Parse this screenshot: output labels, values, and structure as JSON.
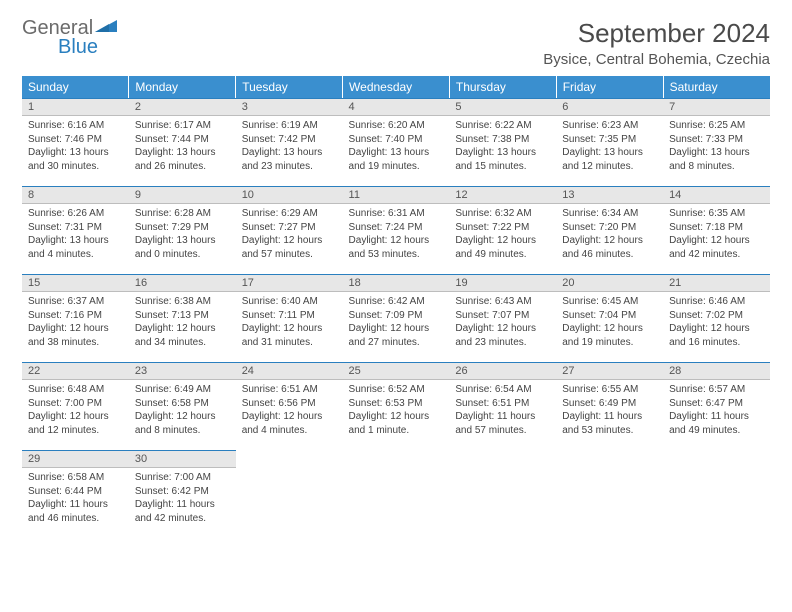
{
  "logo": {
    "general": "General",
    "blue": "Blue"
  },
  "title": "September 2024",
  "location": "Bysice, Central Bohemia, Czechia",
  "header_bg": "#3a8fcf",
  "day_header_bg": "#e7e7e7",
  "day_header_border": "#2a7fbf",
  "weekdays": [
    "Sunday",
    "Monday",
    "Tuesday",
    "Wednesday",
    "Thursday",
    "Friday",
    "Saturday"
  ],
  "days": [
    {
      "n": "1",
      "sr": "Sunrise: 6:16 AM",
      "ss": "Sunset: 7:46 PM",
      "dl": "Daylight: 13 hours and 30 minutes."
    },
    {
      "n": "2",
      "sr": "Sunrise: 6:17 AM",
      "ss": "Sunset: 7:44 PM",
      "dl": "Daylight: 13 hours and 26 minutes."
    },
    {
      "n": "3",
      "sr": "Sunrise: 6:19 AM",
      "ss": "Sunset: 7:42 PM",
      "dl": "Daylight: 13 hours and 23 minutes."
    },
    {
      "n": "4",
      "sr": "Sunrise: 6:20 AM",
      "ss": "Sunset: 7:40 PM",
      "dl": "Daylight: 13 hours and 19 minutes."
    },
    {
      "n": "5",
      "sr": "Sunrise: 6:22 AM",
      "ss": "Sunset: 7:38 PM",
      "dl": "Daylight: 13 hours and 15 minutes."
    },
    {
      "n": "6",
      "sr": "Sunrise: 6:23 AM",
      "ss": "Sunset: 7:35 PM",
      "dl": "Daylight: 13 hours and 12 minutes."
    },
    {
      "n": "7",
      "sr": "Sunrise: 6:25 AM",
      "ss": "Sunset: 7:33 PM",
      "dl": "Daylight: 13 hours and 8 minutes."
    },
    {
      "n": "8",
      "sr": "Sunrise: 6:26 AM",
      "ss": "Sunset: 7:31 PM",
      "dl": "Daylight: 13 hours and 4 minutes."
    },
    {
      "n": "9",
      "sr": "Sunrise: 6:28 AM",
      "ss": "Sunset: 7:29 PM",
      "dl": "Daylight: 13 hours and 0 minutes."
    },
    {
      "n": "10",
      "sr": "Sunrise: 6:29 AM",
      "ss": "Sunset: 7:27 PM",
      "dl": "Daylight: 12 hours and 57 minutes."
    },
    {
      "n": "11",
      "sr": "Sunrise: 6:31 AM",
      "ss": "Sunset: 7:24 PM",
      "dl": "Daylight: 12 hours and 53 minutes."
    },
    {
      "n": "12",
      "sr": "Sunrise: 6:32 AM",
      "ss": "Sunset: 7:22 PM",
      "dl": "Daylight: 12 hours and 49 minutes."
    },
    {
      "n": "13",
      "sr": "Sunrise: 6:34 AM",
      "ss": "Sunset: 7:20 PM",
      "dl": "Daylight: 12 hours and 46 minutes."
    },
    {
      "n": "14",
      "sr": "Sunrise: 6:35 AM",
      "ss": "Sunset: 7:18 PM",
      "dl": "Daylight: 12 hours and 42 minutes."
    },
    {
      "n": "15",
      "sr": "Sunrise: 6:37 AM",
      "ss": "Sunset: 7:16 PM",
      "dl": "Daylight: 12 hours and 38 minutes."
    },
    {
      "n": "16",
      "sr": "Sunrise: 6:38 AM",
      "ss": "Sunset: 7:13 PM",
      "dl": "Daylight: 12 hours and 34 minutes."
    },
    {
      "n": "17",
      "sr": "Sunrise: 6:40 AM",
      "ss": "Sunset: 7:11 PM",
      "dl": "Daylight: 12 hours and 31 minutes."
    },
    {
      "n": "18",
      "sr": "Sunrise: 6:42 AM",
      "ss": "Sunset: 7:09 PM",
      "dl": "Daylight: 12 hours and 27 minutes."
    },
    {
      "n": "19",
      "sr": "Sunrise: 6:43 AM",
      "ss": "Sunset: 7:07 PM",
      "dl": "Daylight: 12 hours and 23 minutes."
    },
    {
      "n": "20",
      "sr": "Sunrise: 6:45 AM",
      "ss": "Sunset: 7:04 PM",
      "dl": "Daylight: 12 hours and 19 minutes."
    },
    {
      "n": "21",
      "sr": "Sunrise: 6:46 AM",
      "ss": "Sunset: 7:02 PM",
      "dl": "Daylight: 12 hours and 16 minutes."
    },
    {
      "n": "22",
      "sr": "Sunrise: 6:48 AM",
      "ss": "Sunset: 7:00 PM",
      "dl": "Daylight: 12 hours and 12 minutes."
    },
    {
      "n": "23",
      "sr": "Sunrise: 6:49 AM",
      "ss": "Sunset: 6:58 PM",
      "dl": "Daylight: 12 hours and 8 minutes."
    },
    {
      "n": "24",
      "sr": "Sunrise: 6:51 AM",
      "ss": "Sunset: 6:56 PM",
      "dl": "Daylight: 12 hours and 4 minutes."
    },
    {
      "n": "25",
      "sr": "Sunrise: 6:52 AM",
      "ss": "Sunset: 6:53 PM",
      "dl": "Daylight: 12 hours and 1 minute."
    },
    {
      "n": "26",
      "sr": "Sunrise: 6:54 AM",
      "ss": "Sunset: 6:51 PM",
      "dl": "Daylight: 11 hours and 57 minutes."
    },
    {
      "n": "27",
      "sr": "Sunrise: 6:55 AM",
      "ss": "Sunset: 6:49 PM",
      "dl": "Daylight: 11 hours and 53 minutes."
    },
    {
      "n": "28",
      "sr": "Sunrise: 6:57 AM",
      "ss": "Sunset: 6:47 PM",
      "dl": "Daylight: 11 hours and 49 minutes."
    },
    {
      "n": "29",
      "sr": "Sunrise: 6:58 AM",
      "ss": "Sunset: 6:44 PM",
      "dl": "Daylight: 11 hours and 46 minutes."
    },
    {
      "n": "30",
      "sr": "Sunrise: 7:00 AM",
      "ss": "Sunset: 6:42 PM",
      "dl": "Daylight: 11 hours and 42 minutes."
    }
  ],
  "start_weekday": 0,
  "rows": 5,
  "cols": 7
}
